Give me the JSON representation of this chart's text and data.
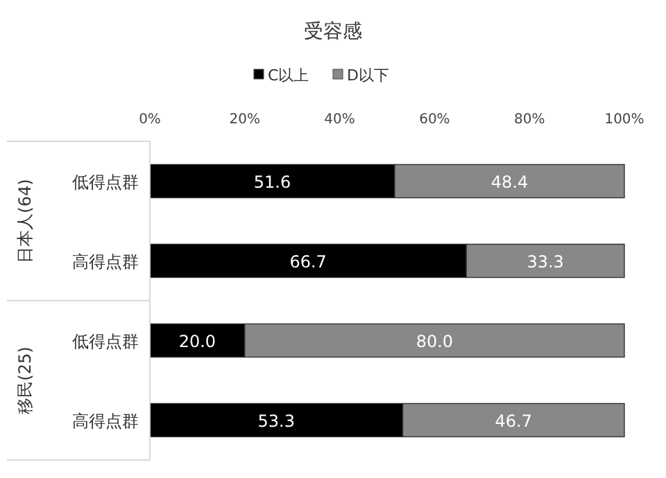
{
  "chart_data": {
    "type": "bar",
    "orientation": "horizontal",
    "stacked": true,
    "title": "受容感",
    "categories": [
      "低得点群",
      "高得点群",
      "低得点群",
      "高得点群"
    ],
    "series": [
      {
        "name": "C以上",
        "color": "#000000",
        "values": [
          51.6,
          66.7,
          20.0,
          53.3
        ],
        "value_labels": [
          "51.6",
          "66.7",
          "20.0",
          "53.3"
        ]
      },
      {
        "name": "D以下",
        "color": "#888888",
        "values": [
          48.4,
          33.3,
          80.0,
          46.7
        ],
        "value_labels": [
          "48.4",
          "33.3",
          "80.0",
          "46.7"
        ]
      }
    ],
    "xlim": [
      0,
      100
    ],
    "xticks": [
      {
        "value": 0,
        "label": "0%"
      },
      {
        "value": 20,
        "label": "20%"
      },
      {
        "value": 40,
        "label": "40%"
      },
      {
        "value": 60,
        "label": "60%"
      },
      {
        "value": 80,
        "label": "80%"
      },
      {
        "value": 100,
        "label": "100%"
      }
    ],
    "annotations": [
      "日本人(64)",
      "移民(25)"
    ],
    "legend": "top",
    "grid": false
  }
}
